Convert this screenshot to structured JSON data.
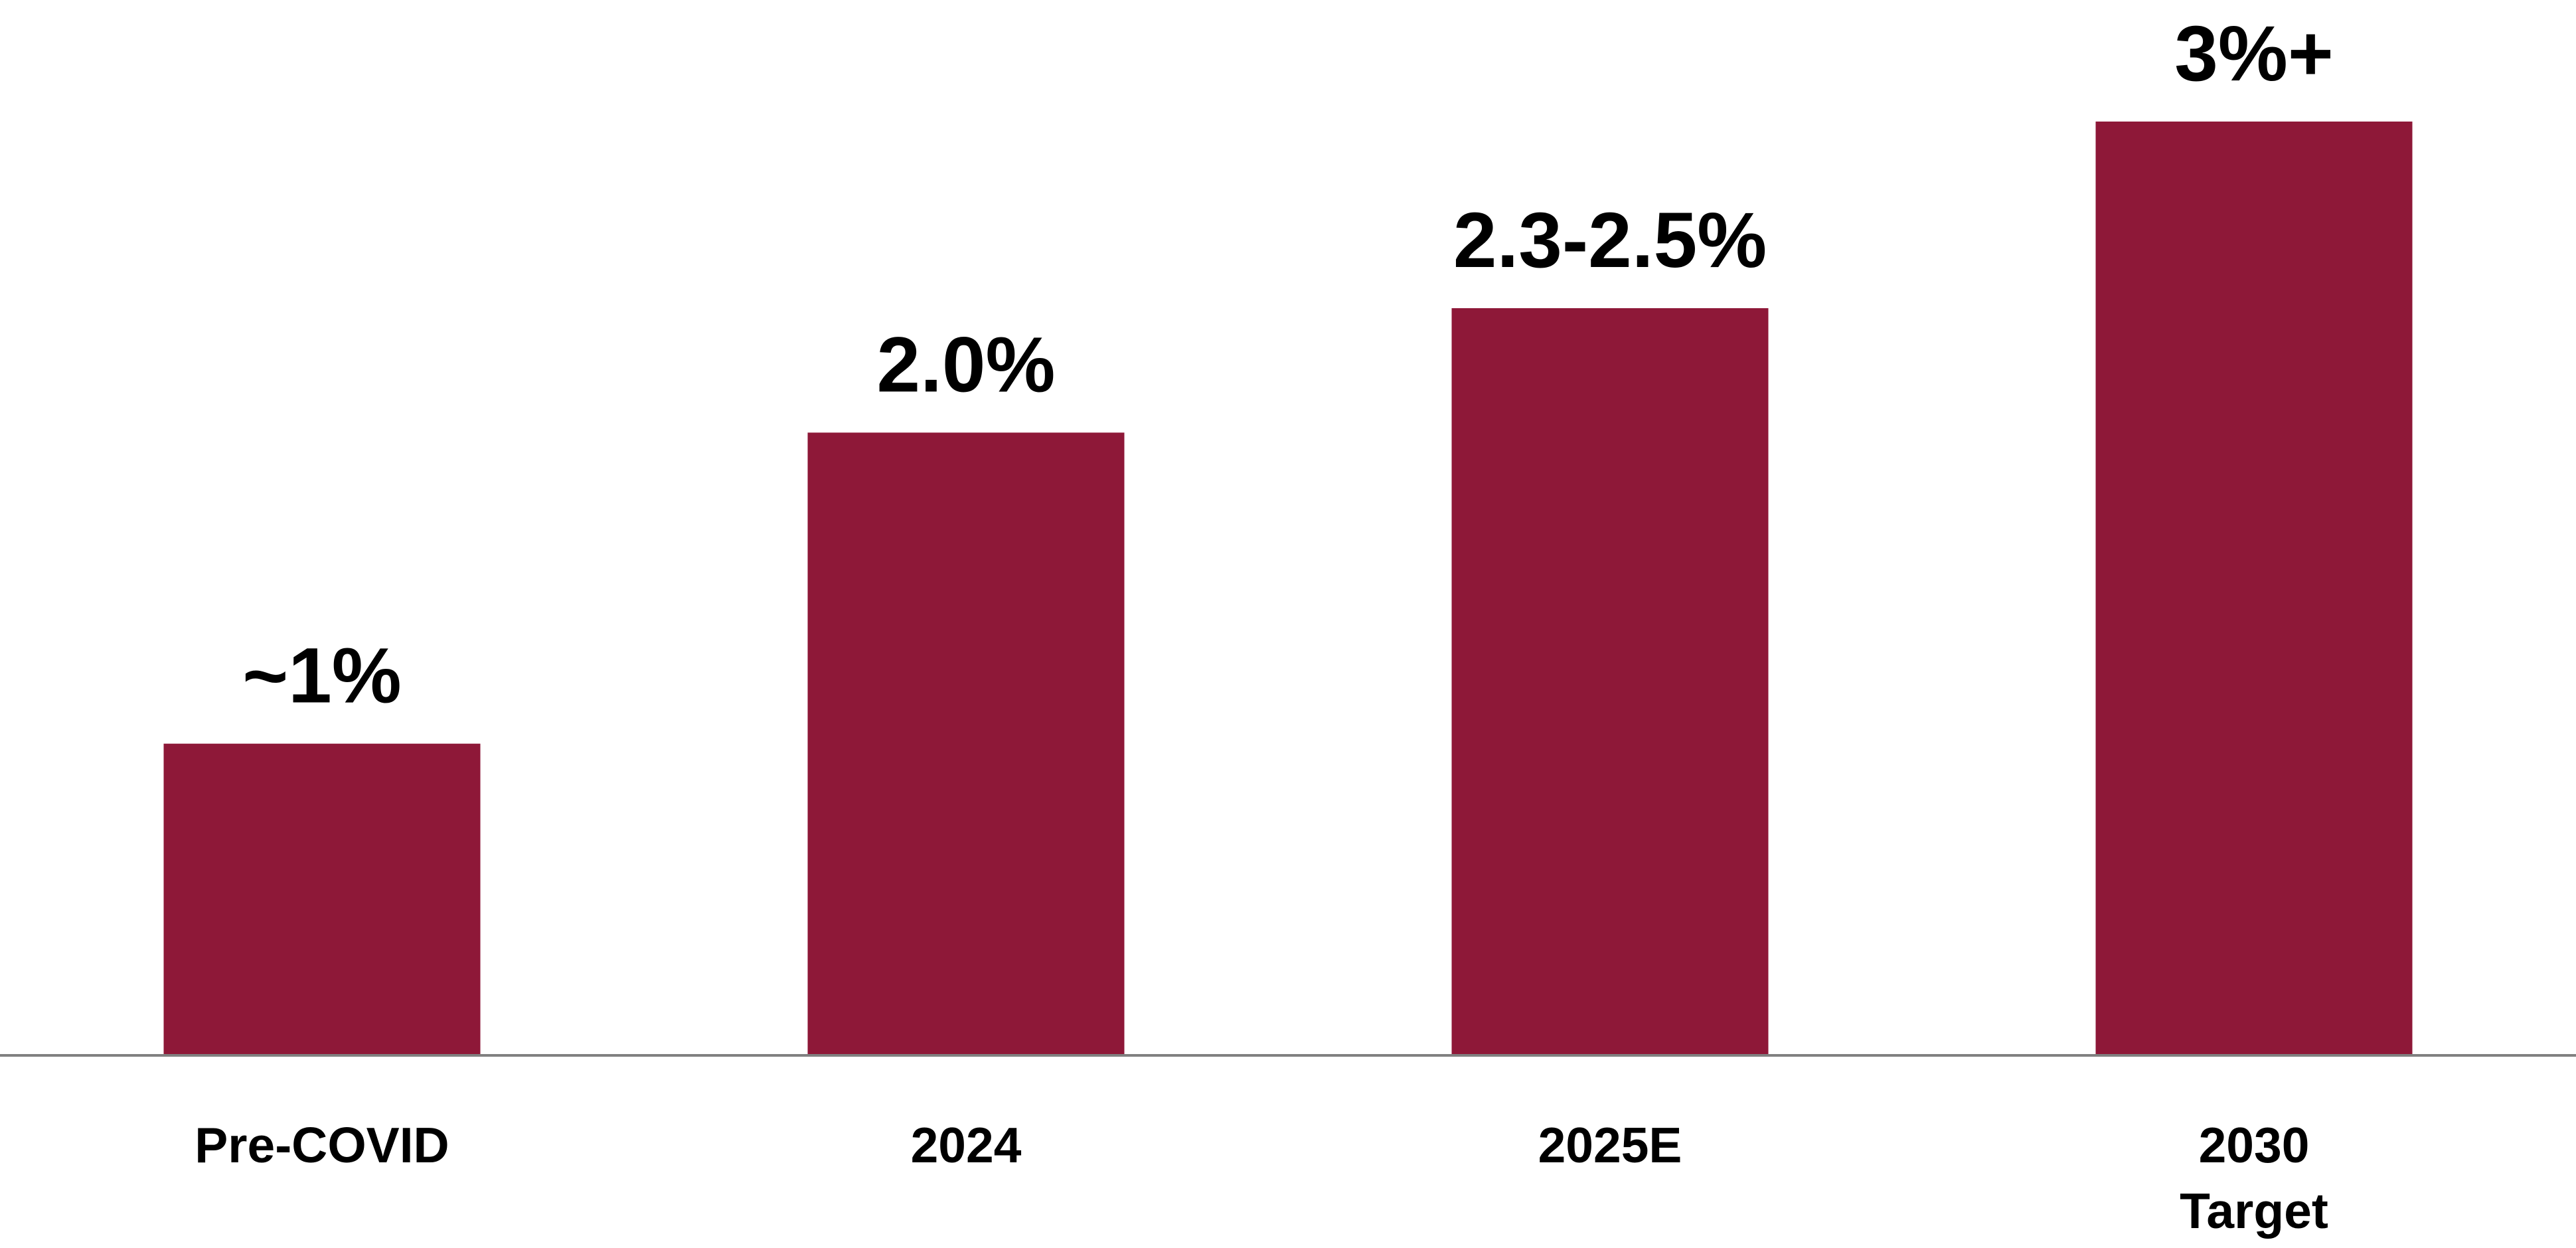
{
  "chart_data": {
    "type": "bar",
    "categories": [
      "Pre-COVID",
      "2024",
      "2025E",
      "2030 Target"
    ],
    "values": [
      1,
      2,
      2.4,
      3
    ],
    "value_labels": [
      "~1%",
      "2.0%",
      "2.3-2.5%",
      "3%+"
    ],
    "color": "#8e1838"
  }
}
